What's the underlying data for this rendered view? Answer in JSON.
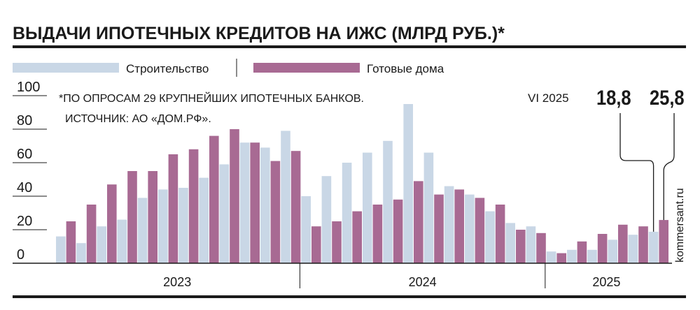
{
  "chart_data": {
    "type": "bar",
    "title": "ВЫДАЧИ ИПОТЕЧНЫХ КРЕДИТОВ НА ИЖС (МЛРД РУБ.)*",
    "footnote": "*ПО ОПРОСАМ 29 КРУПНЕЙШИХ ИПОТЕЧНЫХ БАНКОВ.",
    "source": "ИСТОЧНИК: АО «ДОМ.РФ».",
    "watermark": "kommersant.ru",
    "ylim": [
      0,
      100
    ],
    "yticks": [
      "0",
      "20",
      "40",
      "60",
      "80",
      "100"
    ],
    "grid": false,
    "legend_position": "top-left",
    "years": [
      {
        "label": "2023",
        "months": 12
      },
      {
        "label": "2024",
        "months": 12
      },
      {
        "label": "2025",
        "months": 6
      }
    ],
    "series": [
      {
        "name": "Строительство",
        "color": "#c9d7e6",
        "values": [
          16,
          12,
          22,
          26,
          39,
          44,
          45,
          51,
          59,
          72,
          69,
          79,
          40,
          52,
          60,
          66,
          73,
          95,
          66,
          46,
          41,
          31,
          24,
          22,
          7,
          8,
          8,
          14,
          17,
          18.8
        ]
      },
      {
        "name": "Готовые дома",
        "color": "#a86a93",
        "values": [
          25,
          35,
          47,
          55,
          55,
          65,
          68,
          76,
          80,
          72,
          61,
          67,
          22,
          25,
          31,
          35,
          38,
          49,
          41,
          44,
          39,
          35,
          20,
          18,
          6,
          13,
          17.5,
          23,
          22,
          25.8
        ]
      }
    ],
    "annotation": {
      "period": "VI 2025",
      "values": [
        "18,8",
        "25,8"
      ]
    }
  }
}
